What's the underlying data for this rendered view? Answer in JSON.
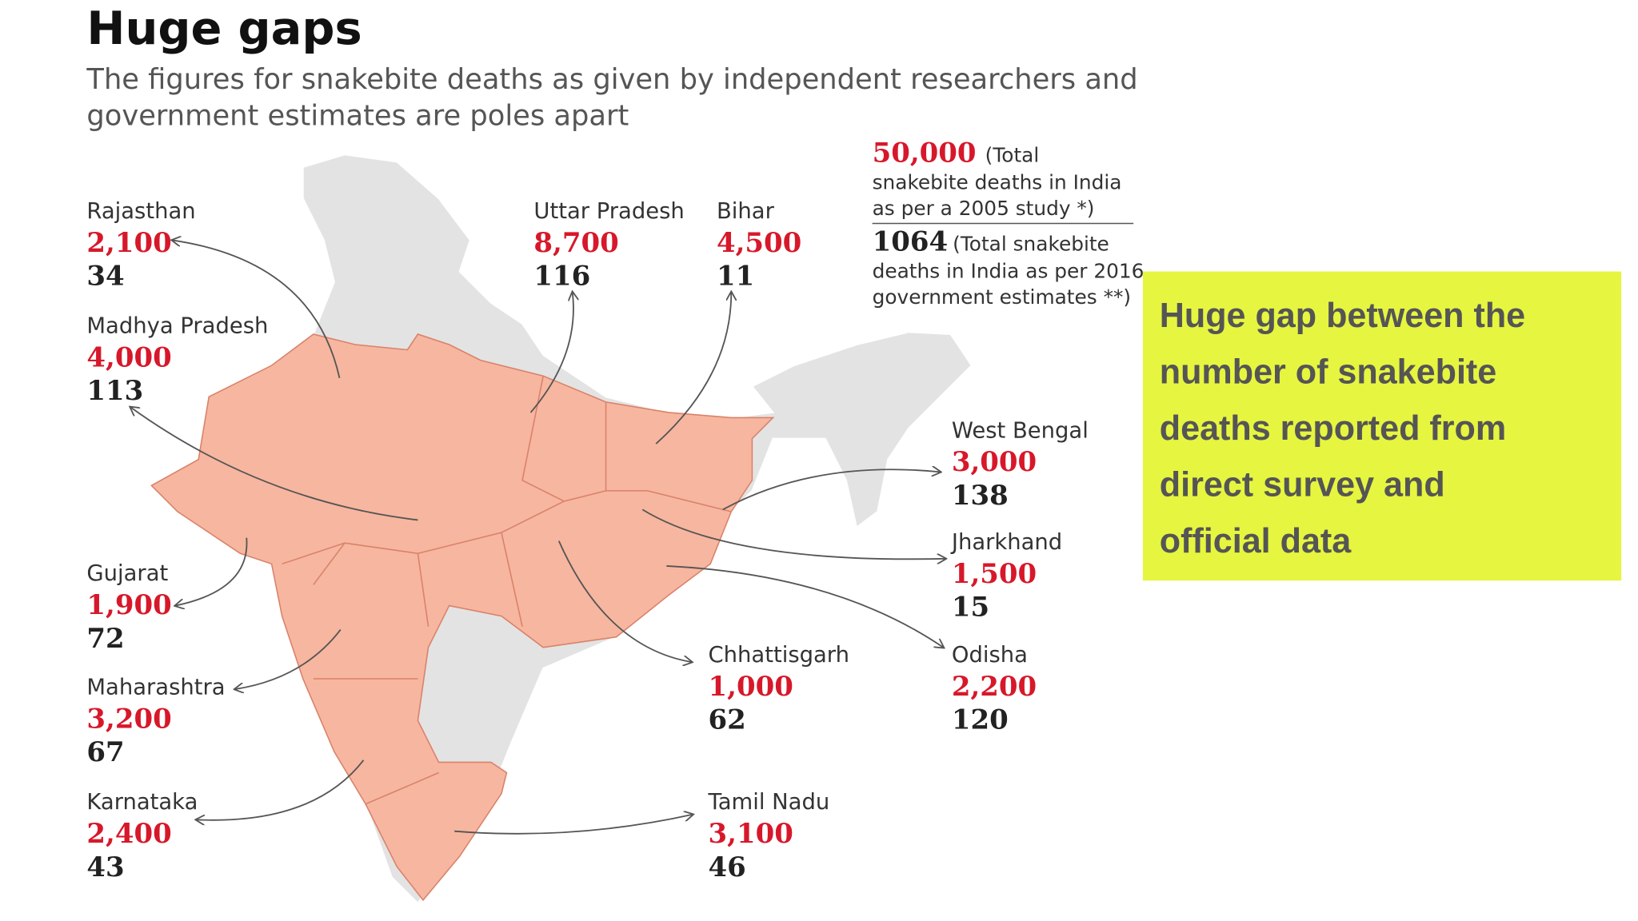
{
  "header": {
    "title": "Huge gaps",
    "subtitle_lines": [
      "The figures for snakebite deaths as given by independent researchers and",
      "government estimates are poles apart"
    ]
  },
  "totals": {
    "study": {
      "value": "50,000",
      "note_lines": [
        "(Total",
        "snakebite deaths in India",
        "as per a 2005 study *)"
      ]
    },
    "government": {
      "value": "1064",
      "note_lines": [
        "(Total snakebite",
        "deaths in India as per 2016",
        "government estimates **)"
      ]
    }
  },
  "states": [
    {
      "name": "Rajasthan",
      "survey": "2,100",
      "official": "34"
    },
    {
      "name": "Madhya Pradesh",
      "survey": "4,000",
      "official": "113"
    },
    {
      "name": "Uttar Pradesh",
      "survey": "8,700",
      "official": "116"
    },
    {
      "name": "Bihar",
      "survey": "4,500",
      "official": "11"
    },
    {
      "name": "West Bengal",
      "survey": "3,000",
      "official": "138"
    },
    {
      "name": "Jharkhand",
      "survey": "1,500",
      "official": "15"
    },
    {
      "name": "Gujarat",
      "survey": "1,900",
      "official": "72"
    },
    {
      "name": "Chhattisgarh",
      "survey": "1,000",
      "official": "62"
    },
    {
      "name": "Odisha",
      "survey": "2,200",
      "official": "120"
    },
    {
      "name": "Maharashtra",
      "survey": "3,200",
      "official": "67"
    },
    {
      "name": "Karnataka",
      "survey": "2,400",
      "official": "43"
    },
    {
      "name": "Tamil Nadu",
      "survey": "3,100",
      "official": "46"
    }
  ],
  "callout": {
    "lines": [
      "Huge gap between the",
      "number of snakebite",
      "deaths reported from",
      "direct survey and",
      "official data"
    ]
  }
}
